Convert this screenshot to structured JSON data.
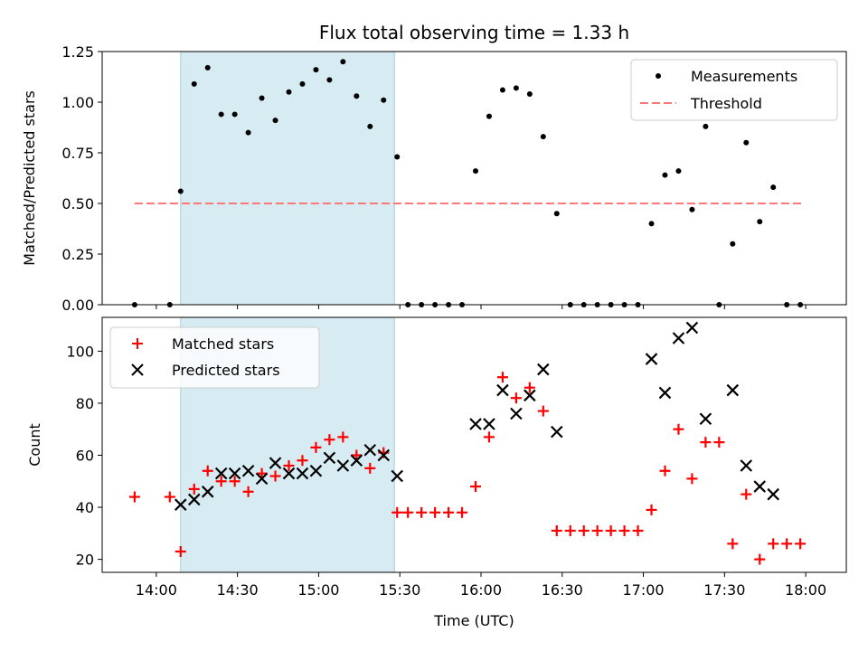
{
  "chart_data": [
    {
      "type": "scatter",
      "title": "Flux total observing time = 1.33 h",
      "ylabel": "Matched/Predicted stars",
      "xlabel": "",
      "xlim": [
        "13:40",
        "18:15"
      ],
      "ylim": [
        0,
        1.25
      ],
      "yticks": [
        "0.00",
        "0.25",
        "0.50",
        "0.75",
        "1.00",
        "1.25"
      ],
      "xticks": [
        "14:00",
        "14:30",
        "15:00",
        "15:30",
        "16:00",
        "16:30",
        "17:00",
        "17:30",
        "18:00"
      ],
      "shaded_region": [
        "14:09",
        "15:28"
      ],
      "legend": {
        "placement": "top-right",
        "entries": [
          "Measurements",
          "Threshold"
        ]
      },
      "threshold": {
        "name": "Threshold",
        "y": 0.5,
        "x": [
          "13:52",
          "17:59"
        ],
        "color": "#ff7777"
      },
      "series": [
        {
          "name": "Measurements",
          "color": "#000000",
          "x": [
            "13:52",
            "14:05",
            "14:09",
            "14:14",
            "14:19",
            "14:24",
            "14:29",
            "14:34",
            "14:39",
            "14:44",
            "14:49",
            "14:54",
            "14:59",
            "15:04",
            "15:09",
            "15:14",
            "15:19",
            "15:24",
            "15:29",
            "15:33",
            "15:38",
            "15:43",
            "15:48",
            "15:53",
            "15:58",
            "16:03",
            "16:08",
            "16:13",
            "16:18",
            "16:23",
            "16:28",
            "16:33",
            "16:38",
            "16:43",
            "16:48",
            "16:53",
            "16:58",
            "17:03",
            "17:08",
            "17:13",
            "17:18",
            "17:23",
            "17:28",
            "17:33",
            "17:38",
            "17:43",
            "17:48",
            "17:53",
            "17:58"
          ],
          "y": [
            0.0,
            0.0,
            0.56,
            1.09,
            1.17,
            0.94,
            0.94,
            0.85,
            1.02,
            0.91,
            1.05,
            1.09,
            1.16,
            1.11,
            1.2,
            1.03,
            0.88,
            1.01,
            0.73,
            0.0,
            0.0,
            0.0,
            0.0,
            0.0,
            0.66,
            0.93,
            1.06,
            1.07,
            1.04,
            0.83,
            0.45,
            0.0,
            0.0,
            0.0,
            0.0,
            0.0,
            0.0,
            0.4,
            0.64,
            0.66,
            0.47,
            0.88,
            0.0,
            0.3,
            0.8,
            0.41,
            0.58,
            0.0,
            0.0
          ]
        }
      ]
    },
    {
      "type": "scatter",
      "title": "",
      "ylabel": "Count",
      "xlabel": "Time (UTC)",
      "xlim": [
        "13:40",
        "18:15"
      ],
      "ylim": [
        15,
        113
      ],
      "yticks": [
        "20",
        "40",
        "60",
        "80",
        "100"
      ],
      "xticks": [
        "14:00",
        "14:30",
        "15:00",
        "15:30",
        "16:00",
        "16:30",
        "17:00",
        "17:30",
        "18:00"
      ],
      "shaded_region": [
        "14:09",
        "15:28"
      ],
      "legend": {
        "placement": "top-left",
        "entries": [
          "Matched stars",
          "Predicted stars"
        ]
      },
      "series": [
        {
          "name": "Matched stars",
          "marker": "plus",
          "color": "#ff0000",
          "x": [
            "13:52",
            "14:05",
            "14:09",
            "14:14",
            "14:19",
            "14:24",
            "14:29",
            "14:34",
            "14:39",
            "14:44",
            "14:49",
            "14:54",
            "14:59",
            "15:04",
            "15:09",
            "15:14",
            "15:19",
            "15:24",
            "15:29",
            "15:33",
            "15:38",
            "15:43",
            "15:48",
            "15:53",
            "15:58",
            "16:03",
            "16:08",
            "16:13",
            "16:18",
            "16:23",
            "16:28",
            "16:33",
            "16:38",
            "16:43",
            "16:48",
            "16:53",
            "16:58",
            "17:03",
            "17:08",
            "17:13",
            "17:18",
            "17:23",
            "17:28",
            "17:33",
            "17:38",
            "17:43",
            "17:48",
            "17:53",
            "17:58"
          ],
          "y": [
            44,
            44,
            23,
            47,
            54,
            50,
            50,
            46,
            53,
            52,
            56,
            58,
            63,
            66,
            67,
            60,
            55,
            61,
            38,
            38,
            38,
            38,
            38,
            38,
            48,
            67,
            90,
            82,
            86,
            77,
            31,
            31,
            31,
            31,
            31,
            31,
            31,
            39,
            54,
            70,
            51,
            65,
            65,
            26,
            45,
            20,
            26,
            26,
            26
          ]
        },
        {
          "name": "Predicted stars",
          "marker": "x",
          "color": "#000000",
          "x": [
            "14:09",
            "14:14",
            "14:19",
            "14:24",
            "14:29",
            "14:34",
            "14:39",
            "14:44",
            "14:49",
            "14:54",
            "14:59",
            "15:04",
            "15:09",
            "15:14",
            "15:19",
            "15:24",
            "15:29",
            "15:58",
            "16:03",
            "16:08",
            "16:13",
            "16:18",
            "16:23",
            "16:28",
            "17:03",
            "17:08",
            "17:13",
            "17:18",
            "17:23",
            "17:33",
            "17:38",
            "17:43",
            "17:48"
          ],
          "y": [
            41,
            43,
            46,
            53,
            53,
            54,
            51,
            57,
            53,
            53,
            54,
            59,
            56,
            58,
            62,
            60,
            52,
            72,
            72,
            85,
            76,
            83,
            93,
            69,
            97,
            84,
            105,
            109,
            74,
            85,
            56,
            48,
            45
          ]
        }
      ]
    }
  ]
}
